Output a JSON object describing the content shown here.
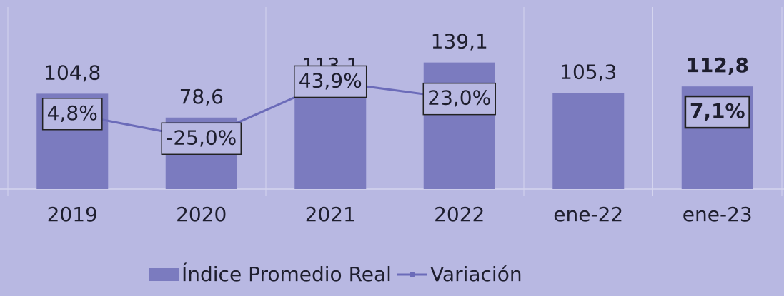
{
  "chart_data": {
    "type": "bar_line",
    "categories": [
      "2019",
      "2020",
      "2021",
      "2022",
      "ene-22",
      "ene-23"
    ],
    "ylim": [
      0,
      200
    ],
    "y2lim": [
      -86,
      134
    ],
    "series": [
      {
        "name": "Índice Promedio Real",
        "type": "bar",
        "color": "#7b7bbf",
        "values": [
          104.8,
          78.6,
          113.1,
          139.1,
          105.3,
          112.8
        ],
        "value_labels": [
          "104,8",
          "78,6",
          "113,1",
          "139,1",
          "105,3",
          "112,8"
        ]
      },
      {
        "name": "Variación",
        "type": "line",
        "axis": "y2",
        "color": "#6b6bb9",
        "values": [
          4.8,
          -25.0,
          43.9,
          23.0,
          null,
          7.1
        ],
        "value_labels": [
          "4,8%",
          "-25,0%",
          "43,9%",
          "23,0%",
          null,
          "7,1%"
        ]
      }
    ]
  }
}
